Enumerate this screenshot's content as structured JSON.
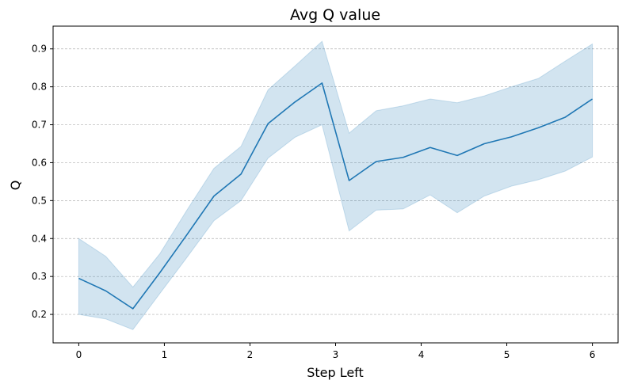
{
  "chart_data": {
    "type": "line",
    "title": "Avg Q value",
    "xlabel": "Step Left",
    "ylabel": "Q",
    "xlim": [
      -0.3,
      6.3
    ],
    "ylim": [
      0.125,
      0.96
    ],
    "xticks": [
      0,
      1,
      2,
      3,
      4,
      5,
      6
    ],
    "yticks": [
      0.2,
      0.3,
      0.4,
      0.5,
      0.6,
      0.7,
      0.8,
      0.9
    ],
    "grid": "y-dashed",
    "colors": {
      "line": "#1f77b4",
      "band": "#1f77b4"
    },
    "series": [
      {
        "name": "Avg Q",
        "x": [
          0,
          0.316,
          0.632,
          0.947,
          1.263,
          1.579,
          1.895,
          2.211,
          2.526,
          2.842,
          3.158,
          3.474,
          3.789,
          4.105,
          4.421,
          4.737,
          5.053,
          5.368,
          5.684,
          6.0
        ],
        "y": [
          0.295,
          0.262,
          0.215,
          0.31,
          0.41,
          0.512,
          0.57,
          0.703,
          0.76,
          0.81,
          0.553,
          0.603,
          0.614,
          0.64,
          0.619,
          0.65,
          0.668,
          0.692,
          0.72,
          0.768
        ],
        "lower": [
          0.2,
          0.188,
          0.16,
          0.255,
          0.35,
          0.447,
          0.5,
          0.612,
          0.667,
          0.7,
          0.42,
          0.475,
          0.478,
          0.515,
          0.468,
          0.512,
          0.538,
          0.555,
          0.578,
          0.615
        ],
        "upper": [
          0.4,
          0.353,
          0.272,
          0.36,
          0.475,
          0.585,
          0.643,
          0.792,
          0.855,
          0.92,
          0.678,
          0.737,
          0.75,
          0.768,
          0.758,
          0.776,
          0.8,
          0.822,
          0.868,
          0.913
        ]
      }
    ]
  }
}
